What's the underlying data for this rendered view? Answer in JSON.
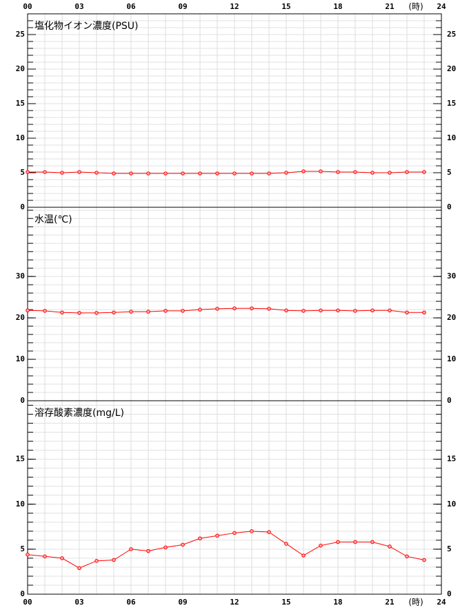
{
  "chart_data": [
    {
      "type": "line",
      "title": "塩化物イオン濃度(PSU)",
      "x_unit": "(時)",
      "x": [
        0,
        1,
        2,
        3,
        4,
        5,
        6,
        7,
        8,
        9,
        10,
        11,
        12,
        13,
        14,
        15,
        16,
        17,
        18,
        19,
        20,
        21,
        22,
        23
      ],
      "xlim": [
        0,
        24
      ],
      "xticks": [
        {
          "value": 0,
          "label": "00"
        },
        {
          "value": 3,
          "label": "03"
        },
        {
          "value": 6,
          "label": "06"
        },
        {
          "value": 9,
          "label": "09"
        },
        12,
        15,
        18,
        21,
        24
      ],
      "values": [
        5.1,
        5.1,
        5.0,
        5.1,
        5.0,
        4.9,
        4.9,
        4.9,
        4.9,
        4.9,
        4.9,
        4.9,
        4.9,
        4.9,
        4.9,
        5.0,
        5.2,
        5.2,
        5.1,
        5.1,
        5.0,
        5.0,
        5.1,
        5.1
      ],
      "color": "#ff0000",
      "ylim": [
        0,
        28
      ],
      "yticks": [
        0,
        5,
        10,
        15,
        20,
        25
      ],
      "minor_step": 1,
      "grid": true
    },
    {
      "type": "line",
      "title": "水温(℃)",
      "x": [
        0,
        1,
        2,
        3,
        4,
        5,
        6,
        7,
        8,
        9,
        10,
        11,
        12,
        13,
        14,
        15,
        16,
        17,
        18,
        19,
        20,
        21,
        22,
        23
      ],
      "xlim": [
        0,
        24
      ],
      "values": [
        21.8,
        21.7,
        21.3,
        21.2,
        21.2,
        21.3,
        21.5,
        21.5,
        21.7,
        21.7,
        22.0,
        22.2,
        22.3,
        22.3,
        22.2,
        21.8,
        21.7,
        21.8,
        21.8,
        21.7,
        21.8,
        21.8,
        21.3,
        21.3
      ],
      "color": "#ff0000",
      "ylim": [
        0,
        46.7
      ],
      "yticks": [
        0,
        10,
        20,
        30
      ],
      "minor_step": 2,
      "grid": true
    },
    {
      "type": "line",
      "title": "溶存酸素濃度(mg/L)",
      "x_unit": "(時)",
      "x": [
        0,
        1,
        2,
        3,
        4,
        5,
        6,
        7,
        8,
        9,
        10,
        11,
        12,
        13,
        14,
        15,
        16,
        17,
        18,
        19,
        20,
        21,
        22,
        23
      ],
      "xlim": [
        0,
        24
      ],
      "xticks": [
        {
          "value": 0,
          "label": "00"
        },
        {
          "value": 3,
          "label": "03"
        },
        {
          "value": 6,
          "label": "06"
        },
        {
          "value": 9,
          "label": "09"
        },
        12,
        15,
        18,
        21,
        24
      ],
      "values": [
        4.4,
        4.2,
        4.0,
        2.9,
        3.7,
        3.8,
        5.0,
        4.8,
        5.2,
        5.5,
        6.2,
        6.5,
        6.8,
        7.0,
        6.9,
        5.6,
        4.3,
        5.4,
        5.8,
        5.8,
        5.8,
        5.3,
        4.2,
        3.8
      ],
      "color": "#ff0000",
      "ylim": [
        0,
        21.5
      ],
      "yticks": [
        0,
        5,
        10,
        15
      ],
      "minor_step": 1,
      "grid": true
    }
  ]
}
